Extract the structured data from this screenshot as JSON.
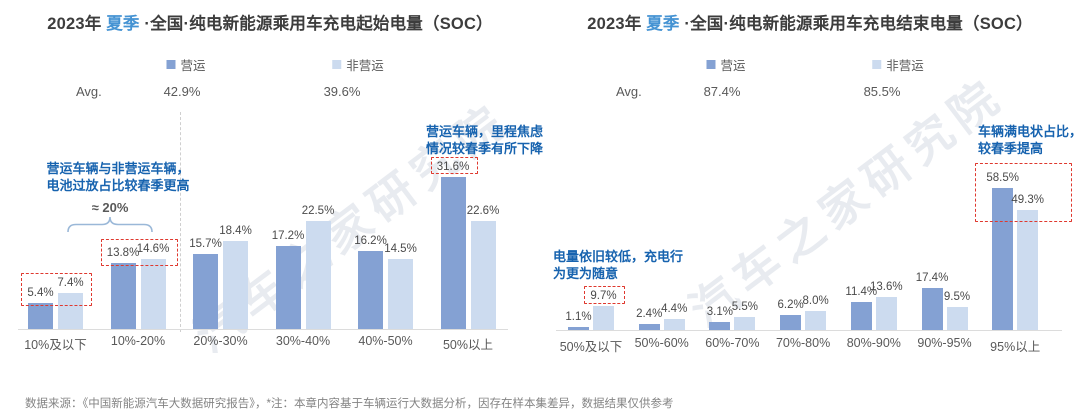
{
  "page": {
    "footer": "数据来源：《中国新能源汽车大数据研究报告》，*注：本章内容基于车辆运行大数据分析，因存在样本集差异，数据结果仅供参考",
    "watermark": "汽车之家研究院"
  },
  "colors": {
    "operating_bar": "#84a1d3",
    "non_operating_bar": "#ccdbef",
    "season_blue": "#4593d3",
    "annotation_blue": "#1763af",
    "highlight_red": "#df382e"
  },
  "chart_data": [
    {
      "type": "bar",
      "title": {
        "prefix": "2023年 ",
        "season": "夏季",
        "rest": " ·全国·纯电新能源乘用车充电起始电量（SOC）"
      },
      "legend": [
        "营运",
        "非营运"
      ],
      "avg_label": "Avg.",
      "avg_values": [
        "42.9%",
        "39.6%"
      ],
      "categories": [
        "10%及以下",
        "10%-20%",
        "20%-30%",
        "30%-40%",
        "40%-50%",
        "50%以上"
      ],
      "series": [
        {
          "name": "营运",
          "values": [
            5.4,
            13.8,
            15.7,
            17.2,
            16.2,
            31.6
          ]
        },
        {
          "name": "非营运",
          "values": [
            7.4,
            14.6,
            18.4,
            22.5,
            14.5,
            22.6
          ]
        }
      ],
      "ylim": [
        0,
        35
      ],
      "grid": false,
      "legend_position": "top",
      "annotations": [
        {
          "lines": [
            "营运车辆与非营运车辆，",
            "电池过放占比较春季更高"
          ]
        },
        {
          "lines": [
            "营运车辆，里程焦虑",
            "情况较春季有所下降"
          ]
        }
      ],
      "brace_label": "≈ 20%",
      "highlights": [
        {
          "group": 0,
          "target": "both"
        },
        {
          "group": 1,
          "target": "both"
        },
        {
          "group": 5,
          "target": "first"
        }
      ]
    },
    {
      "type": "bar",
      "title": {
        "prefix": "2023年 ",
        "season": "夏季",
        "rest": " ·全国·纯电新能源乘用车充电结束电量（SOC）"
      },
      "legend": [
        "营运",
        "非营运"
      ],
      "avg_label": "Avg.",
      "avg_values": [
        "87.4%",
        "85.5%"
      ],
      "categories": [
        "50%及以下",
        "50%-60%",
        "60%-70%",
        "70%-80%",
        "80%-90%",
        "90%-95%",
        "95%以上"
      ],
      "series": [
        {
          "name": "营运",
          "values": [
            1.1,
            2.4,
            3.1,
            6.2,
            11.4,
            17.4,
            58.5
          ]
        },
        {
          "name": "非营运",
          "values": [
            9.7,
            4.4,
            5.5,
            8.0,
            13.6,
            9.5,
            49.3
          ]
        }
      ],
      "ylim": [
        0,
        65
      ],
      "grid": false,
      "legend_position": "top",
      "annotations": [
        {
          "lines": [
            "电量依旧较低，充电行",
            "为更为随意"
          ]
        },
        {
          "lines": [
            "车辆满电状占比，",
            "较春季提高"
          ]
        }
      ],
      "highlights": [
        {
          "group": 0,
          "target": "second"
        },
        {
          "group": 6,
          "target": "both"
        }
      ]
    }
  ]
}
